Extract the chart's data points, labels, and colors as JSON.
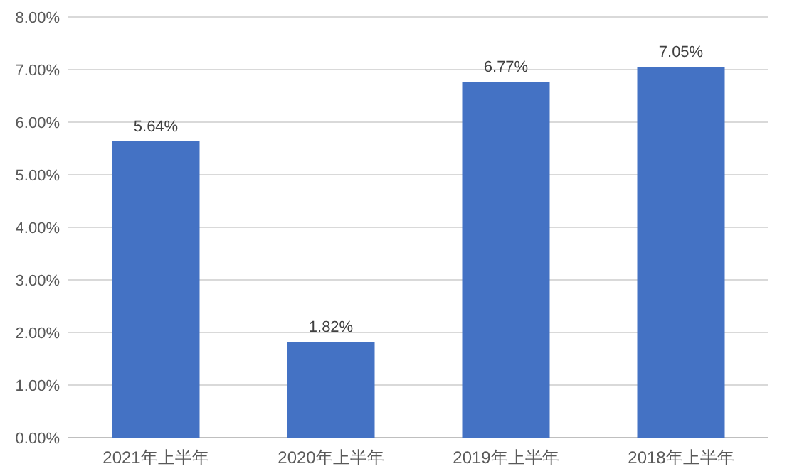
{
  "chart_data": {
    "type": "bar",
    "categories": [
      "2021年上半年",
      "2020年上半年",
      "2019年上半年",
      "2018年上半年"
    ],
    "values": [
      5.64,
      1.82,
      6.77,
      7.05
    ],
    "value_labels": [
      "5.64%",
      "1.82%",
      "6.77%",
      "7.05%"
    ],
    "color": "#4472c4",
    "ylim": [
      0,
      8
    ],
    "yticks": [
      {
        "value": 0,
        "label": "0.00%"
      },
      {
        "value": 1,
        "label": "1.00%"
      },
      {
        "value": 2,
        "label": "2.00%"
      },
      {
        "value": 3,
        "label": "3.00%"
      },
      {
        "value": 4,
        "label": "4.00%"
      },
      {
        "value": 5,
        "label": "5.00%"
      },
      {
        "value": 6,
        "label": "6.00%"
      },
      {
        "value": 7,
        "label": "7.00%"
      },
      {
        "value": 8,
        "label": "8.00%"
      }
    ],
    "grid": "y"
  }
}
